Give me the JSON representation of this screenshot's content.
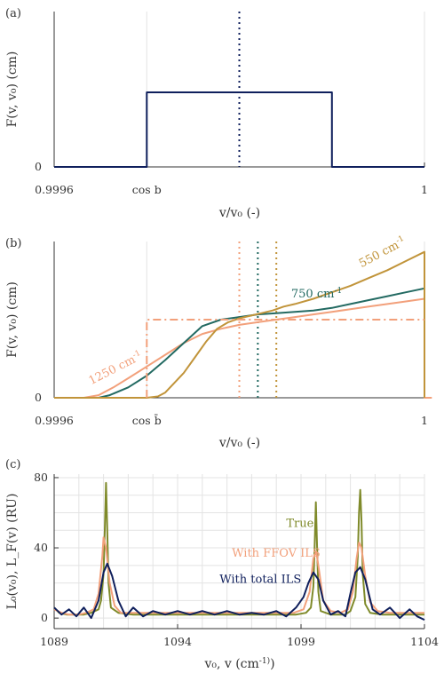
{
  "colors": {
    "navy": "#0f1f5c",
    "olive": "#7f8a2a",
    "salmon": "#f2a07b",
    "teal": "#236a62",
    "gold": "#c1943a",
    "grid": "#e3e3e3",
    "axis": "#333333"
  },
  "chart_data": [
    {
      "panel": "(a)",
      "type": "line",
      "ylabel": "F(v, v₀) (cm)",
      "xlabel": "v/v₀ (-)",
      "xlim": [
        0,
        100
      ],
      "ylim": [
        0,
        1.25
      ],
      "x_tick_labels": [
        {
          "x": 0,
          "label": "0.9996"
        },
        {
          "x": 25,
          "label": "cos b"
        },
        {
          "x": 100,
          "label": "1"
        }
      ],
      "y_tick_labels": [
        {
          "y": 0,
          "label": "0"
        }
      ],
      "series": [
        {
          "color": "navy",
          "style": "solid",
          "x": [
            0,
            25,
            25,
            75,
            75,
            100
          ],
          "y": [
            0,
            0,
            0.6,
            0.6,
            0,
            0
          ]
        }
      ],
      "vlines": [
        {
          "x": 50,
          "color": "navy",
          "style": "dotted"
        }
      ]
    },
    {
      "panel": "(b)",
      "type": "line",
      "ylabel": "F(v, v₀) (cm)",
      "xlabel": "v/v₀ (-)",
      "xlim": [
        0,
        100
      ],
      "ylim": [
        0,
        1.2
      ],
      "x_tick_labels": [
        {
          "x": 0,
          "label": "0.9996"
        },
        {
          "x": 25,
          "label": "cos b̄"
        },
        {
          "x": 100,
          "label": "1"
        }
      ],
      "y_tick_labels": [
        {
          "y": 0,
          "label": "0"
        }
      ],
      "series": [
        {
          "name": "1250 cm-1",
          "color": "salmon",
          "style": "solid",
          "x": [
            0,
            8,
            12,
            16,
            20,
            25,
            30,
            35,
            40,
            45,
            50,
            55,
            60,
            65,
            70,
            75,
            80,
            85,
            90,
            95,
            100,
            100,
            102
          ],
          "y": [
            0,
            0,
            0.02,
            0.08,
            0.15,
            0.24,
            0.33,
            0.42,
            0.49,
            0.53,
            0.56,
            0.58,
            0.6,
            0.62,
            0.64,
            0.66,
            0.68,
            0.7,
            0.72,
            0.74,
            0.76,
            0,
            0
          ]
        },
        {
          "name": "750 cm-1",
          "color": "teal",
          "style": "solid",
          "x": [
            0,
            12,
            15,
            20,
            25,
            30,
            35,
            40,
            45,
            50,
            55,
            60,
            65,
            70,
            75,
            80,
            85,
            90,
            95,
            100
          ],
          "y": [
            0,
            0,
            0.02,
            0.08,
            0.17,
            0.29,
            0.42,
            0.55,
            0.6,
            0.62,
            0.64,
            0.65,
            0.66,
            0.67,
            0.69,
            0.72,
            0.75,
            0.78,
            0.81,
            0.84
          ]
        },
        {
          "name": "550 cm-1",
          "color": "gold",
          "style": "solid",
          "x": [
            0,
            25,
            28,
            30,
            32,
            35,
            38,
            41,
            44,
            47,
            50,
            53,
            56,
            59,
            62,
            65,
            70,
            75,
            80,
            85,
            90,
            95,
            100,
            100
          ],
          "y": [
            0,
            0,
            0.01,
            0.04,
            0.1,
            0.19,
            0.31,
            0.43,
            0.53,
            0.58,
            0.61,
            0.63,
            0.65,
            0.67,
            0.7,
            0.72,
            0.76,
            0.81,
            0.86,
            0.92,
            0.98,
            1.05,
            1.12,
            0
          ]
        },
        {
          "color": "salmon",
          "style": "dashdot",
          "x": [
            25,
            25,
            100
          ],
          "y": [
            0,
            0.6,
            0.6
          ]
        }
      ],
      "vlines": [
        {
          "x": 50,
          "color": "salmon",
          "style": "dotted"
        },
        {
          "x": 55,
          "color": "teal",
          "style": "dotted"
        },
        {
          "x": 60,
          "color": "gold",
          "style": "dotted"
        }
      ],
      "annotations": [
        {
          "text": "550 cm-1",
          "color": "gold",
          "x": 83,
          "y": 1.0,
          "rotate": -28
        },
        {
          "text": "750 cm-1",
          "color": "teal",
          "x": 64,
          "y": 0.77,
          "rotate": 0
        },
        {
          "text": "1250 cm-1",
          "color": "salmon",
          "x": 10,
          "y": 0.1,
          "rotate": -27
        }
      ]
    },
    {
      "panel": "(c)",
      "type": "line",
      "ylabel": "L₀(v₀), L_F(v) (RU)",
      "xlabel": "v₀, v (cm-1)",
      "xlim": [
        1089,
        1104
      ],
      "ylim": [
        -6,
        82
      ],
      "grid": true,
      "x_ticks": [
        1089,
        1094,
        1099,
        1104
      ],
      "y_ticks": [
        0,
        40,
        80
      ],
      "series": [
        {
          "name": "True",
          "color": "olive",
          "style": "solid",
          "x": [
            1089,
            1089.2,
            1089.5,
            1089.8,
            1090,
            1090.2,
            1090.5,
            1090.8,
            1090.9,
            1091.0,
            1091.05,
            1091.1,
            1091.15,
            1091.2,
            1091.3,
            1091.6,
            1092.2,
            1093,
            1094,
            1095,
            1096,
            1097,
            1098,
            1098.8,
            1099.2,
            1099.4,
            1099.5,
            1099.55,
            1099.6,
            1099.65,
            1099.7,
            1099.8,
            1100.2,
            1100.8,
            1101.0,
            1101.2,
            1101.3,
            1101.35,
            1101.4,
            1101.45,
            1101.5,
            1101.6,
            1101.8,
            1102.3,
            1103,
            1104
          ],
          "y": [
            6,
            3,
            2,
            2,
            2,
            2,
            3,
            5,
            10,
            25,
            50,
            77,
            50,
            20,
            6,
            3,
            2,
            2,
            2,
            2,
            2,
            2,
            2,
            2,
            3,
            6,
            18,
            40,
            66,
            40,
            15,
            4,
            2,
            2,
            4,
            12,
            35,
            60,
            73,
            55,
            25,
            8,
            3,
            2,
            2,
            2
          ]
        },
        {
          "name": "With FFOV ILS",
          "color": "salmon",
          "style": "solid",
          "x": [
            1089,
            1089.3,
            1089.6,
            1090,
            1090.3,
            1090.6,
            1090.8,
            1090.95,
            1091.0,
            1091.1,
            1091.25,
            1091.45,
            1091.7,
            1092,
            1092.5,
            1093,
            1094,
            1095,
            1096,
            1097,
            1098,
            1098.7,
            1099.1,
            1099.35,
            1099.5,
            1099.62,
            1099.75,
            1099.9,
            1100.2,
            1100.6,
            1100.9,
            1101.1,
            1101.25,
            1101.35,
            1101.45,
            1101.6,
            1101.8,
            1102.1,
            1102.6,
            1103,
            1104
          ],
          "y": [
            5,
            3,
            2,
            2,
            3,
            5,
            14,
            35,
            46,
            40,
            20,
            7,
            3,
            3,
            3,
            3,
            3,
            3,
            3,
            3,
            3,
            3,
            5,
            15,
            34,
            38,
            25,
            10,
            4,
            3,
            5,
            15,
            34,
            43,
            40,
            24,
            9,
            4,
            3,
            3,
            3
          ]
        },
        {
          "name": "With total ILS",
          "color": "navy",
          "style": "solid",
          "x": [
            1089,
            1089.3,
            1089.6,
            1089.9,
            1090.2,
            1090.5,
            1090.8,
            1091.0,
            1091.15,
            1091.35,
            1091.6,
            1091.9,
            1092.2,
            1092.6,
            1093,
            1093.5,
            1094,
            1094.5,
            1095,
            1095.5,
            1096,
            1096.5,
            1097,
            1097.5,
            1098,
            1098.4,
            1098.8,
            1099.1,
            1099.3,
            1099.5,
            1099.7,
            1099.9,
            1100.2,
            1100.5,
            1100.8,
            1101.0,
            1101.2,
            1101.4,
            1101.6,
            1101.9,
            1102.2,
            1102.6,
            1103,
            1103.4,
            1103.7,
            1104
          ],
          "y": [
            6,
            2,
            5,
            1,
            6,
            0,
            10,
            26,
            31,
            24,
            10,
            1,
            6,
            1,
            4,
            2,
            4,
            2,
            4,
            2,
            4,
            2,
            3,
            2,
            4,
            1,
            6,
            12,
            20,
            26,
            22,
            10,
            2,
            4,
            1,
            14,
            26,
            29,
            22,
            5,
            2,
            6,
            0,
            5,
            1,
            -1
          ]
        }
      ],
      "annotations": [
        {
          "text": "True",
          "color": "olive",
          "x": 1098.4,
          "y": 52
        },
        {
          "text": "With FFOV ILS",
          "color": "salmon",
          "x": 1096.2,
          "y": 35
        },
        {
          "text": "With total ILS",
          "color": "navy",
          "x": 1095.7,
          "y": 20
        }
      ]
    }
  ]
}
